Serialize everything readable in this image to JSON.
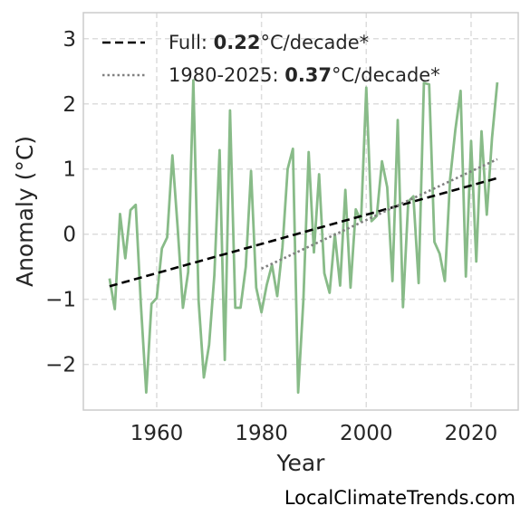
{
  "chart_data": {
    "type": "line",
    "xlabel": "Year",
    "ylabel": "Anomaly (°C)",
    "xlim": [
      1946,
      2029
    ],
    "ylim": [
      -2.7,
      3.4
    ],
    "x_ticks": [
      1960,
      1980,
      2000,
      2020
    ],
    "y_ticks": [
      -2,
      -1,
      0,
      1,
      2,
      3
    ],
    "y_tick_labels": [
      "−2",
      "−1",
      "0",
      "1",
      "2",
      "3"
    ],
    "grid": true,
    "legend_position": "top-left",
    "series": [
      {
        "color": "#88bb88",
        "style": "solid",
        "x": [
          1951,
          1952,
          1953,
          1954,
          1955,
          1956,
          1957,
          1958,
          1959,
          1960,
          1961,
          1962,
          1963,
          1964,
          1965,
          1966,
          1967,
          1968,
          1969,
          1970,
          1971,
          1972,
          1973,
          1974,
          1975,
          1976,
          1977,
          1978,
          1979,
          1980,
          1981,
          1982,
          1983,
          1984,
          1985,
          1986,
          1987,
          1988,
          1989,
          1990,
          1991,
          1992,
          1993,
          1994,
          1995,
          1996,
          1997,
          1998,
          1999,
          2000,
          2001,
          2002,
          2003,
          2004,
          2005,
          2006,
          2007,
          2008,
          2009,
          2010,
          2011,
          2012,
          2013,
          2014,
          2015,
          2016,
          2017,
          2018,
          2019,
          2020,
          2021,
          2022,
          2023,
          2024,
          2025
        ],
        "values": [
          -0.68,
          -1.15,
          0.31,
          -0.37,
          0.37,
          0.45,
          -1.1,
          -2.43,
          -1.07,
          -0.98,
          -0.22,
          -0.05,
          1.21,
          0.1,
          -1.13,
          -0.58,
          2.36,
          -1.02,
          -2.2,
          -1.7,
          -0.63,
          1.29,
          -1.93,
          1.9,
          -1.13,
          -1.13,
          -0.5,
          0.97,
          -0.82,
          -1.2,
          -0.78,
          -0.47,
          -0.95,
          -0.2,
          1.0,
          1.31,
          -2.43,
          -1.0,
          1.26,
          -0.28,
          0.92,
          -0.6,
          -0.9,
          0.0,
          -0.79,
          0.68,
          -0.82,
          0.38,
          0.2,
          2.25,
          0.2,
          0.28,
          1.12,
          0.72,
          -0.72,
          1.75,
          -1.12,
          0.5,
          0.58,
          -0.75,
          2.32,
          2.3,
          -0.12,
          -0.3,
          -0.72,
          0.84,
          1.6,
          2.2,
          -0.65,
          1.43,
          -0.42,
          1.58,
          0.3,
          1.48,
          2.33
        ]
      },
      {
        "name": "Full",
        "color": "#000000",
        "style": "dashed",
        "x": [
          1951,
          2025
        ],
        "values": [
          -0.8,
          0.86
        ]
      },
      {
        "name": "1980-2025",
        "color": "#808080",
        "style": "dotted",
        "x": [
          1980,
          2025
        ],
        "values": [
          -0.53,
          1.15
        ]
      }
    ],
    "legend": [
      {
        "prefix": "Full: ",
        "value": "0.22",
        "suffix": "°C/decade*",
        "color": "#000000",
        "style": "dashed"
      },
      {
        "prefix": "1980-2025: ",
        "value": "0.37",
        "suffix": "°C/decade*",
        "color": "#808080",
        "style": "dotted"
      }
    ]
  },
  "footer": "LocalClimateTrends.com"
}
